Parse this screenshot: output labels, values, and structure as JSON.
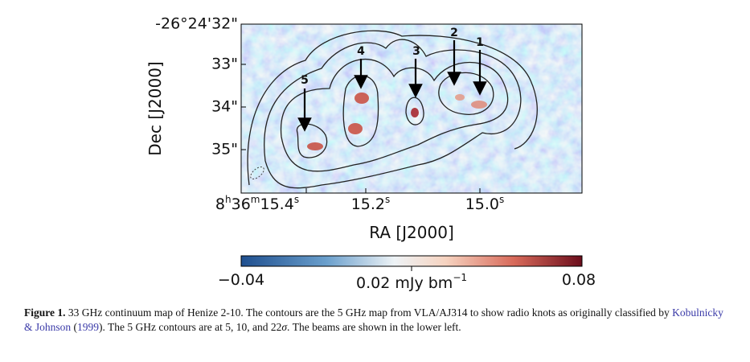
{
  "figure": {
    "y_axis": {
      "label": "Dec [J2000]",
      "ticks": [
        "-26°24'32\"",
        "33\"",
        "34\"",
        "35\""
      ]
    },
    "x_axis": {
      "label": "RA [J2000]",
      "ticks": [
        {
          "parts": [
            "8",
            "h",
            "36",
            "m",
            "15.4",
            "s"
          ]
        },
        {
          "parts": [
            "15.2",
            "s"
          ]
        },
        {
          "parts": [
            "15.0",
            "s"
          ]
        }
      ]
    },
    "knots": [
      "1",
      "2",
      "3",
      "4",
      "5"
    ],
    "colorbar": {
      "tick_labels": [
        "−0.04",
        "0.02",
        "0.08"
      ],
      "unit": "mJy bm",
      "unit_exponent": "−1"
    }
  },
  "caption": {
    "label": "Figure 1.",
    "text_1": "33 GHz continuum map of Henize 2-10. The contours are the 5 GHz map from VLA/AJ314 to show radio knots as originally classified by",
    "link_authors": "Kobulnicky & Johnson",
    "text_2": "(",
    "link_year": "1999",
    "text_3": "). The 5 GHz contours are at 5, 10, and 22",
    "sigma": "σ",
    "text_4": ". The beams are shown in the lower left."
  }
}
